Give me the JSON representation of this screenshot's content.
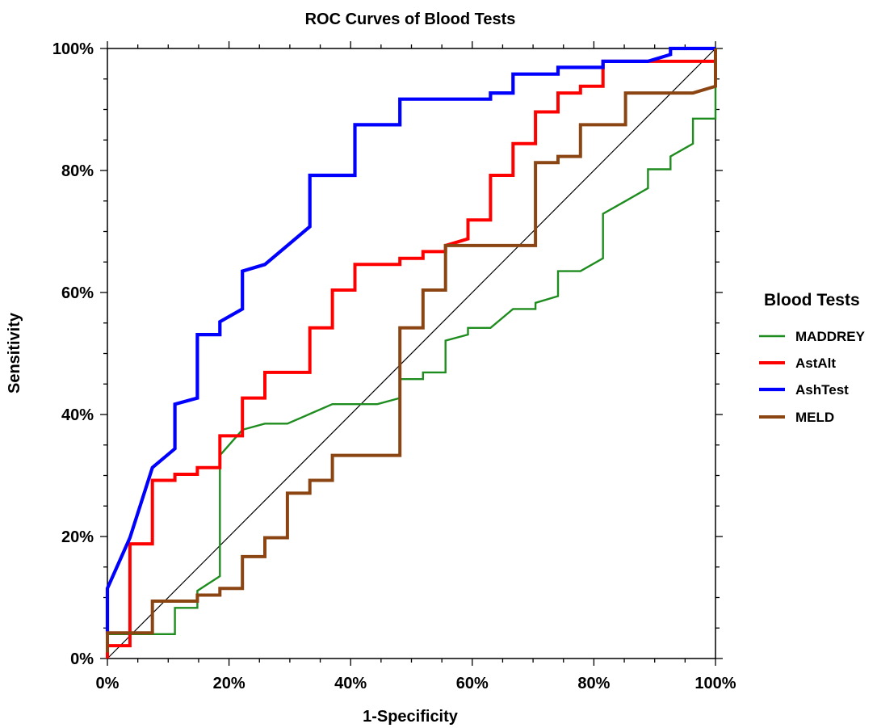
{
  "chart_data": {
    "type": "line",
    "title": "ROC Curves of Blood Tests",
    "xlabel": "1-Specificity",
    "ylabel": "Sensitivity",
    "xlim": [
      0,
      1
    ],
    "ylim": [
      0,
      1
    ],
    "x_ticks": [
      0,
      0.2,
      0.4,
      0.6,
      0.8,
      1.0
    ],
    "y_ticks": [
      0,
      0.2,
      0.4,
      0.6,
      0.8,
      1.0
    ],
    "x_tick_labels": [
      "0%",
      "20%",
      "40%",
      "60%",
      "80%",
      "100%"
    ],
    "y_tick_labels": [
      "0%",
      "20%",
      "40%",
      "60%",
      "80%",
      "100%"
    ],
    "grid": false,
    "legend_title": "Blood Tests",
    "legend_position": "right",
    "reference_line": {
      "from": [
        0,
        0
      ],
      "to": [
        1,
        1
      ],
      "color": "#000000"
    },
    "series": [
      {
        "name": "MADDREY",
        "color": "#1e8c1e",
        "points": [
          [
            0,
            0
          ],
          [
            0,
            0.04
          ],
          [
            0.111,
            0.04
          ],
          [
            0.111,
            0.083
          ],
          [
            0.148,
            0.083
          ],
          [
            0.148,
            0.111
          ],
          [
            0.185,
            0.135
          ],
          [
            0.185,
            0.333
          ],
          [
            0.222,
            0.375
          ],
          [
            0.259,
            0.385
          ],
          [
            0.296,
            0.385
          ],
          [
            0.37,
            0.417
          ],
          [
            0.444,
            0.417
          ],
          [
            0.481,
            0.427
          ],
          [
            0.481,
            0.458
          ],
          [
            0.519,
            0.458
          ],
          [
            0.519,
            0.469
          ],
          [
            0.556,
            0.469
          ],
          [
            0.556,
            0.521
          ],
          [
            0.593,
            0.531
          ],
          [
            0.593,
            0.542
          ],
          [
            0.63,
            0.542
          ],
          [
            0.667,
            0.573
          ],
          [
            0.704,
            0.573
          ],
          [
            0.704,
            0.583
          ],
          [
            0.741,
            0.594
          ],
          [
            0.741,
            0.635
          ],
          [
            0.778,
            0.635
          ],
          [
            0.815,
            0.656
          ],
          [
            0.815,
            0.729
          ],
          [
            0.852,
            0.75
          ],
          [
            0.889,
            0.771
          ],
          [
            0.889,
            0.802
          ],
          [
            0.926,
            0.802
          ],
          [
            0.926,
            0.823
          ],
          [
            0.963,
            0.844
          ],
          [
            0.963,
            0.885
          ],
          [
            1.0,
            0.885
          ],
          [
            1.0,
            1.0
          ]
        ]
      },
      {
        "name": "AstAlt",
        "color": "#ff0000",
        "points": [
          [
            0,
            0
          ],
          [
            0,
            0.021
          ],
          [
            0.037,
            0.021
          ],
          [
            0.037,
            0.188
          ],
          [
            0.074,
            0.188
          ],
          [
            0.074,
            0.292
          ],
          [
            0.111,
            0.292
          ],
          [
            0.111,
            0.302
          ],
          [
            0.148,
            0.302
          ],
          [
            0.148,
            0.313
          ],
          [
            0.185,
            0.313
          ],
          [
            0.185,
            0.365
          ],
          [
            0.222,
            0.365
          ],
          [
            0.222,
            0.427
          ],
          [
            0.259,
            0.427
          ],
          [
            0.259,
            0.469
          ],
          [
            0.333,
            0.469
          ],
          [
            0.333,
            0.542
          ],
          [
            0.37,
            0.542
          ],
          [
            0.37,
            0.604
          ],
          [
            0.407,
            0.604
          ],
          [
            0.407,
            0.646
          ],
          [
            0.481,
            0.646
          ],
          [
            0.481,
            0.656
          ],
          [
            0.519,
            0.656
          ],
          [
            0.519,
            0.667
          ],
          [
            0.556,
            0.667
          ],
          [
            0.556,
            0.677
          ],
          [
            0.593,
            0.688
          ],
          [
            0.593,
            0.719
          ],
          [
            0.63,
            0.719
          ],
          [
            0.63,
            0.792
          ],
          [
            0.667,
            0.792
          ],
          [
            0.667,
            0.844
          ],
          [
            0.704,
            0.844
          ],
          [
            0.704,
            0.896
          ],
          [
            0.741,
            0.896
          ],
          [
            0.741,
            0.927
          ],
          [
            0.778,
            0.927
          ],
          [
            0.778,
            0.938
          ],
          [
            0.815,
            0.938
          ],
          [
            0.815,
            0.979
          ],
          [
            1.0,
            0.979
          ],
          [
            1.0,
            1.0
          ]
        ]
      },
      {
        "name": "AshTest",
        "color": "#0000ff",
        "points": [
          [
            0,
            0.04
          ],
          [
            0,
            0.115
          ],
          [
            0.037,
            0.198
          ],
          [
            0.074,
            0.313
          ],
          [
            0.111,
            0.344
          ],
          [
            0.111,
            0.417
          ],
          [
            0.148,
            0.427
          ],
          [
            0.148,
            0.531
          ],
          [
            0.185,
            0.531
          ],
          [
            0.185,
            0.552
          ],
          [
            0.222,
            0.573
          ],
          [
            0.222,
            0.635
          ],
          [
            0.259,
            0.646
          ],
          [
            0.296,
            0.677
          ],
          [
            0.333,
            0.708
          ],
          [
            0.333,
            0.792
          ],
          [
            0.407,
            0.792
          ],
          [
            0.407,
            0.875
          ],
          [
            0.481,
            0.875
          ],
          [
            0.481,
            0.917
          ],
          [
            0.63,
            0.917
          ],
          [
            0.63,
            0.927
          ],
          [
            0.667,
            0.927
          ],
          [
            0.667,
            0.958
          ],
          [
            0.741,
            0.958
          ],
          [
            0.741,
            0.969
          ],
          [
            0.815,
            0.969
          ],
          [
            0.815,
            0.979
          ],
          [
            0.889,
            0.979
          ],
          [
            0.926,
            0.99
          ],
          [
            0.926,
            1.0
          ],
          [
            1.0,
            1.0
          ]
        ]
      },
      {
        "name": "MELD",
        "color": "#8b4513",
        "points": [
          [
            0,
            0.01
          ],
          [
            0,
            0.042
          ],
          [
            0.074,
            0.042
          ],
          [
            0.074,
            0.094
          ],
          [
            0.148,
            0.094
          ],
          [
            0.148,
            0.104
          ],
          [
            0.185,
            0.104
          ],
          [
            0.185,
            0.115
          ],
          [
            0.222,
            0.115
          ],
          [
            0.222,
            0.167
          ],
          [
            0.259,
            0.167
          ],
          [
            0.259,
            0.198
          ],
          [
            0.296,
            0.198
          ],
          [
            0.296,
            0.271
          ],
          [
            0.333,
            0.271
          ],
          [
            0.333,
            0.292
          ],
          [
            0.37,
            0.292
          ],
          [
            0.37,
            0.333
          ],
          [
            0.481,
            0.333
          ],
          [
            0.481,
            0.542
          ],
          [
            0.519,
            0.542
          ],
          [
            0.519,
            0.604
          ],
          [
            0.556,
            0.604
          ],
          [
            0.556,
            0.677
          ],
          [
            0.704,
            0.677
          ],
          [
            0.704,
            0.813
          ],
          [
            0.741,
            0.813
          ],
          [
            0.741,
            0.823
          ],
          [
            0.778,
            0.823
          ],
          [
            0.778,
            0.875
          ],
          [
            0.852,
            0.875
          ],
          [
            0.852,
            0.927
          ],
          [
            0.963,
            0.927
          ],
          [
            1.0,
            0.938
          ],
          [
            1.0,
            1.0
          ]
        ]
      }
    ]
  }
}
